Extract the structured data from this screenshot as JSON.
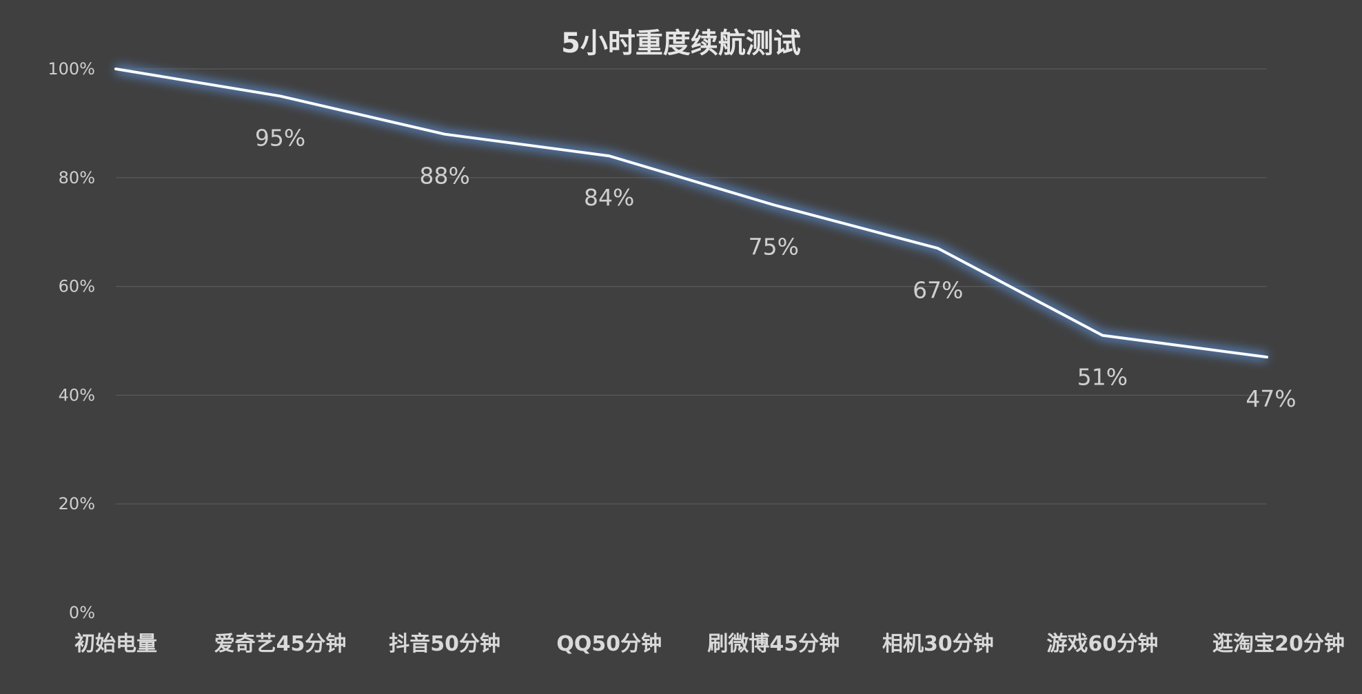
{
  "chart_data": {
    "type": "line",
    "title": "5小时重度续航测试",
    "categories": [
      "初始电量",
      "爱奇艺45分钟",
      "抖音50分钟",
      "QQ50分钟",
      "刷微博45分钟",
      "相机30分钟",
      "游戏60分钟",
      "逛淘宝20分钟"
    ],
    "series": [
      {
        "values": [
          100,
          95,
          88,
          84,
          75,
          67,
          51,
          47
        ]
      }
    ],
    "data_labels": [
      "",
      "95%",
      "88%",
      "84%",
      "75%",
      "67%",
      "51%",
      "47%"
    ],
    "y_ticks": [
      "0%",
      "20%",
      "40%",
      "60%",
      "80%",
      "100%"
    ],
    "ylim": [
      0,
      100
    ],
    "grid": true,
    "legend": "none",
    "colors": {
      "background": "#404040",
      "line": "#ffffff",
      "glow": "#5b8fd6",
      "grid": "#5a5a5a"
    }
  }
}
